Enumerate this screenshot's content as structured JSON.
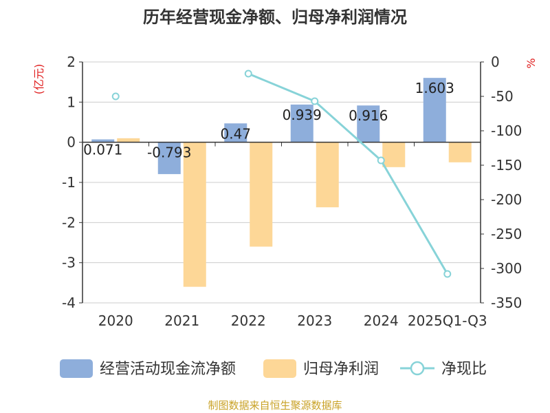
{
  "chart_data": {
    "type": "bar",
    "title": "历年经营现金净额、归母净利润情况",
    "categories": [
      "2020",
      "2021",
      "2022",
      "2023",
      "2024",
      "2025Q1-Q3"
    ],
    "series": [
      {
        "name": "经营活动现金流净额",
        "type": "bar",
        "axis": "left",
        "color": "#8eaedb",
        "values": [
          0.071,
          -0.793,
          0.47,
          0.939,
          0.916,
          1.603
        ],
        "labels": [
          "0.071",
          "-0.793",
          "0.47",
          "0.939",
          "0.916",
          "1.603"
        ]
      },
      {
        "name": "归母净利润",
        "type": "bar",
        "axis": "left",
        "color": "#fdd797",
        "values": [
          0.1,
          -3.6,
          -2.6,
          -1.62,
          -0.62,
          -0.5
        ]
      },
      {
        "name": "净现比",
        "type": "line",
        "axis": "right",
        "color": "#87d3d8",
        "values": [
          -50,
          null,
          -17,
          -57,
          -143,
          -308
        ]
      }
    ],
    "y_left": {
      "label": "(亿元)",
      "min": -4,
      "max": 2,
      "ticks": [
        2,
        1,
        0,
        -1,
        -2,
        -3,
        -4
      ],
      "tick_labels": [
        "2",
        "1",
        "0",
        "-1",
        "-2",
        "-3",
        "-4"
      ]
    },
    "y_right": {
      "label": "%",
      "min": -350,
      "max": 0,
      "ticks": [
        0,
        -50,
        -100,
        -150,
        -200,
        -250,
        -300,
        -350
      ],
      "tick_labels": [
        "0",
        "-50",
        "-100",
        "-150",
        "-200",
        "-250",
        "-300",
        "-350"
      ]
    },
    "grid": true,
    "legend_position": "bottom"
  },
  "source": "制图数据来自恒生聚源数据库",
  "colors": {
    "axis_label": "#e02020",
    "source": "#c9a227",
    "text": "#333333",
    "grid": "#cccccc"
  }
}
